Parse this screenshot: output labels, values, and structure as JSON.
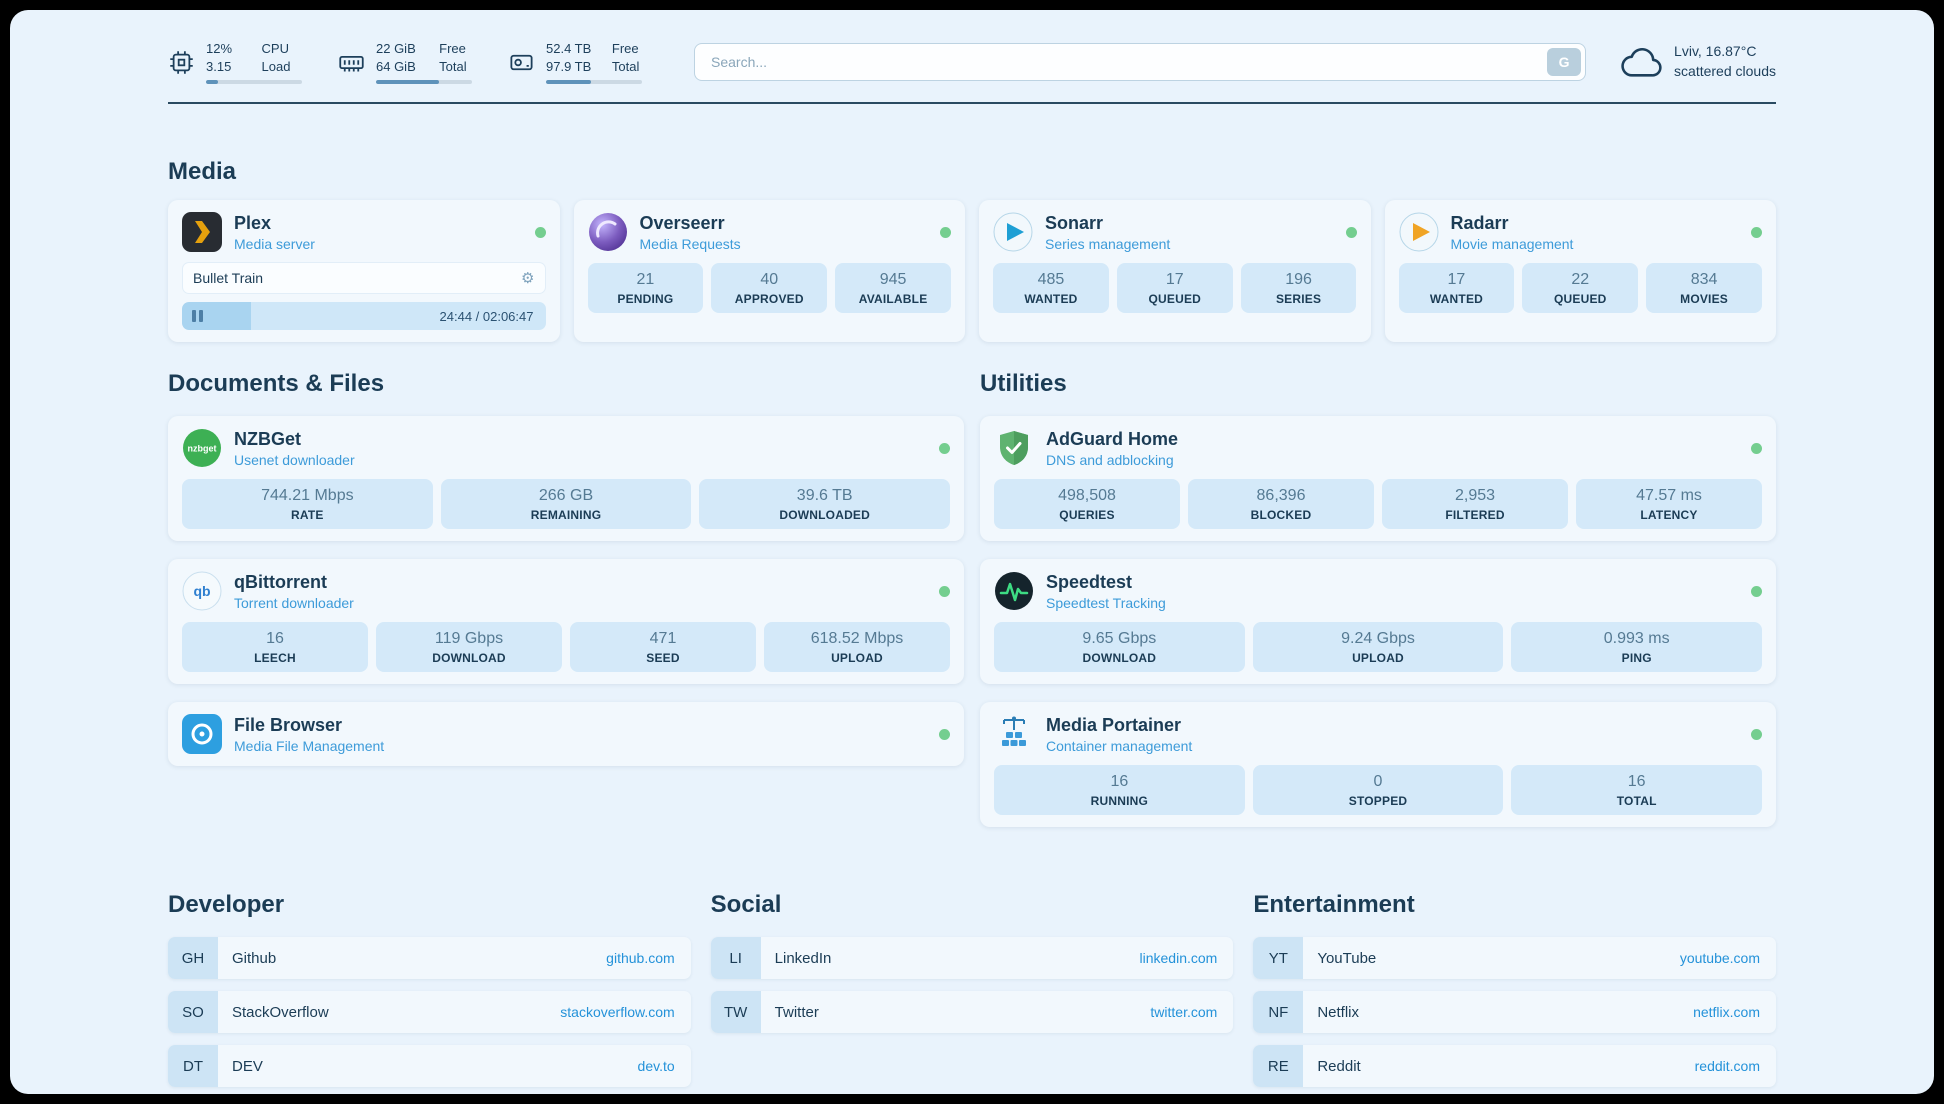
{
  "topbar": {
    "cpu": {
      "value1": "12%",
      "value2": "3.15",
      "label1": "CPU",
      "label2": "Load",
      "progress_pct": 12
    },
    "ram": {
      "value1": "22 GiB",
      "value2": "64 GiB",
      "label1": "Free",
      "label2": "Total",
      "progress_pct": 66
    },
    "disk": {
      "value1": "52.4 TB",
      "value2": "97.9 TB",
      "label1": "Free",
      "label2": "Total",
      "progress_pct": 47
    },
    "search": {
      "placeholder": "Search...",
      "button_label": "G"
    },
    "weather": {
      "location": "Lviv, 16.87°C",
      "condition": "scattered clouds"
    }
  },
  "icons": {
    "gear": "⚙"
  },
  "colors": {
    "accent_blue": "#2492d9",
    "status_green": "#74ce8f",
    "page_bg": "#e9f3fc",
    "stat_box": "#d4e9f9"
  },
  "sections": {
    "media": {
      "title": "Media",
      "plex": {
        "name": "Plex",
        "subtitle": "Media server",
        "now_playing": "Bullet Train",
        "time": "24:44 / 02:06:47",
        "progress_pct": 19
      },
      "overseerr": {
        "name": "Overseerr",
        "subtitle": "Media Requests",
        "stats": [
          {
            "value": "21",
            "label": "PENDING"
          },
          {
            "value": "40",
            "label": "APPROVED"
          },
          {
            "value": "945",
            "label": "AVAILABLE"
          }
        ]
      },
      "sonarr": {
        "name": "Sonarr",
        "subtitle": "Series management",
        "stats": [
          {
            "value": "485",
            "label": "WANTED"
          },
          {
            "value": "17",
            "label": "QUEUED"
          },
          {
            "value": "196",
            "label": "SERIES"
          }
        ]
      },
      "radarr": {
        "name": "Radarr",
        "subtitle": "Movie management",
        "stats": [
          {
            "value": "17",
            "label": "WANTED"
          },
          {
            "value": "22",
            "label": "QUEUED"
          },
          {
            "value": "834",
            "label": "MOVIES"
          }
        ]
      }
    },
    "documents": {
      "title": "Documents & Files",
      "nzbget": {
        "name": "NZBGet",
        "subtitle": "Usenet downloader",
        "icon_text": "nzbget",
        "stats": [
          {
            "value": "744.21 Mbps",
            "label": "RATE"
          },
          {
            "value": "266 GB",
            "label": "REMAINING"
          },
          {
            "value": "39.6 TB",
            "label": "DOWNLOADED"
          }
        ]
      },
      "qbittorrent": {
        "name": "qBittorrent",
        "subtitle": "Torrent downloader",
        "icon_text": "qb",
        "stats": [
          {
            "value": "16",
            "label": "LEECH"
          },
          {
            "value": "119 Gbps",
            "label": "DOWNLOAD"
          },
          {
            "value": "471",
            "label": "SEED"
          },
          {
            "value": "618.52 Mbps",
            "label": "UPLOAD"
          }
        ]
      },
      "filebrowser": {
        "name": "File Browser",
        "subtitle": "Media File Management"
      }
    },
    "utilities": {
      "title": "Utilities",
      "adguard": {
        "name": "AdGuard Home",
        "subtitle": "DNS and adblocking",
        "stats": [
          {
            "value": "498,508",
            "label": "QUERIES"
          },
          {
            "value": "86,396",
            "label": "BLOCKED"
          },
          {
            "value": "2,953",
            "label": "FILTERED"
          },
          {
            "value": "47.57 ms",
            "label": "LATENCY"
          }
        ]
      },
      "speedtest": {
        "name": "Speedtest",
        "subtitle": "Speedtest Tracking",
        "stats": [
          {
            "value": "9.65 Gbps",
            "label": "DOWNLOAD"
          },
          {
            "value": "9.24 Gbps",
            "label": "UPLOAD"
          },
          {
            "value": "0.993 ms",
            "label": "PING"
          }
        ]
      },
      "portainer": {
        "name": "Media Portainer",
        "subtitle": "Container management",
        "stats": [
          {
            "value": "16",
            "label": "RUNNING"
          },
          {
            "value": "0",
            "label": "STOPPED"
          },
          {
            "value": "16",
            "label": "TOTAL"
          }
        ]
      }
    },
    "bookmarks": {
      "developer": {
        "title": "Developer",
        "items": [
          {
            "abbr": "GH",
            "name": "Github",
            "url": "github.com"
          },
          {
            "abbr": "SO",
            "name": "StackOverflow",
            "url": "stackoverflow.com"
          },
          {
            "abbr": "DT",
            "name": "DEV",
            "url": "dev.to"
          }
        ]
      },
      "social": {
        "title": "Social",
        "items": [
          {
            "abbr": "LI",
            "name": "LinkedIn",
            "url": "linkedin.com"
          },
          {
            "abbr": "TW",
            "name": "Twitter",
            "url": "twitter.com"
          }
        ]
      },
      "entertainment": {
        "title": "Entertainment",
        "items": [
          {
            "abbr": "YT",
            "name": "YouTube",
            "url": "youtube.com"
          },
          {
            "abbr": "NF",
            "name": "Netflix",
            "url": "netflix.com"
          },
          {
            "abbr": "RE",
            "name": "Reddit",
            "url": "reddit.com"
          }
        ]
      }
    }
  }
}
